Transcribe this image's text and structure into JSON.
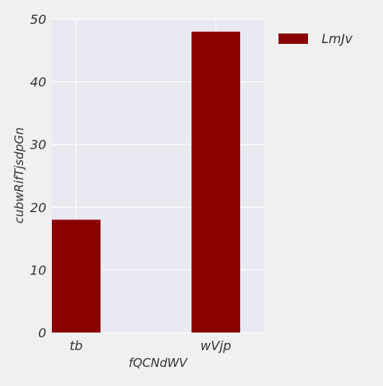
{
  "colors": {
    "figure_bg": "#f0f0f0",
    "plot_bg": "#e9e9f1",
    "grid": "#ffffff",
    "bar": "#8b0000",
    "text": "#333333"
  },
  "chart_data": {
    "type": "bar",
    "title": "",
    "xlabel": "fQCNdWV",
    "ylabel": "cubwRifTjsdpGn",
    "categories": [
      "tb",
      "wVjp"
    ],
    "series": [
      {
        "name": "LmJv",
        "values": [
          18,
          48
        ],
        "color": "#8b0000"
      }
    ],
    "ylim": [
      0,
      50
    ],
    "yticks": [
      "0",
      "10",
      "20",
      "30",
      "40",
      "50"
    ],
    "grid": true,
    "legend_position": "outside-top-right"
  }
}
